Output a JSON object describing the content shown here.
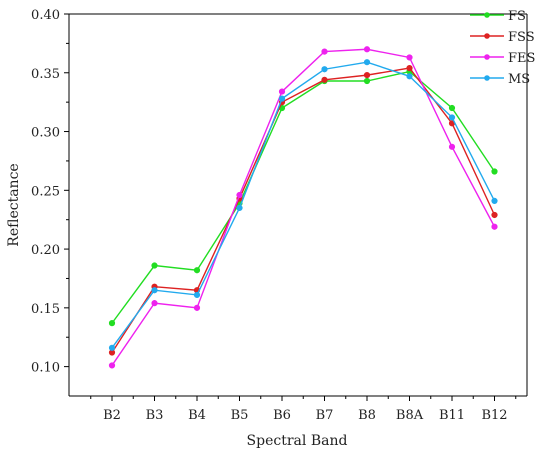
{
  "chart_data": {
    "type": "line",
    "xlabel": "Spectral Band",
    "ylabel": "Reflectance",
    "categories": [
      "B2",
      "B3",
      "B4",
      "B5",
      "B6",
      "B7",
      "B8",
      "B8A",
      "B11",
      "B12"
    ],
    "ylim": [
      0.075,
      0.4
    ],
    "yticks": [
      "0.10",
      "0.15",
      "0.20",
      "0.25",
      "0.30",
      "0.35",
      "0.40"
    ],
    "grid": false,
    "legend_position": "top-right",
    "series": [
      {
        "name": "FS",
        "color": "#22dd22",
        "values": [
          0.137,
          0.186,
          0.182,
          0.239,
          0.32,
          0.343,
          0.343,
          0.351,
          0.32,
          0.266
        ]
      },
      {
        "name": "FSS",
        "color": "#dd2222",
        "values": [
          0.112,
          0.168,
          0.165,
          0.243,
          0.325,
          0.344,
          0.348,
          0.354,
          0.307,
          0.229
        ]
      },
      {
        "name": "FES",
        "color": "#ee22ee",
        "values": [
          0.101,
          0.154,
          0.15,
          0.246,
          0.334,
          0.368,
          0.37,
          0.363,
          0.287,
          0.219
        ]
      },
      {
        "name": "MS",
        "color": "#22aaee",
        "values": [
          0.116,
          0.165,
          0.161,
          0.235,
          0.328,
          0.353,
          0.359,
          0.347,
          0.312,
          0.241
        ]
      }
    ]
  }
}
